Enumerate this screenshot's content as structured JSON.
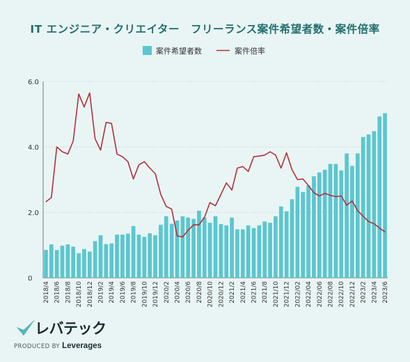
{
  "header": {
    "title": "IT エンジニア・クリエイター　フリーランス案件希望者数・案件倍率"
  },
  "brand": {
    "logo_text": "レバテック",
    "produced_by": "PRODUCED BY",
    "company": "Leverages"
  },
  "colors": {
    "background": "#e9f5f4",
    "bar": "#5bc6cf",
    "line": "#b0313a",
    "title": "#226f6e"
  },
  "chart_data": {
    "type": "bar",
    "title": "IT エンジニア・クリエイター　フリーランス案件希望者数・案件倍率",
    "legend_position": "top",
    "grid": "horizontal",
    "ylim": [
      0,
      6
    ],
    "yticks": [
      "0",
      "2.0",
      "4.0",
      "6.0"
    ],
    "x": [
      "2018/4",
      "2018/5",
      "2018/6",
      "2018/7",
      "2018/8",
      "2018/9",
      "2018/10",
      "2018/11",
      "2018/12",
      "2019/1",
      "2019/2",
      "2019/3",
      "2019/4",
      "2019/5",
      "2019/6",
      "2019/7",
      "2019/8",
      "2019/9",
      "2019/10",
      "2019/11",
      "2019/12",
      "2020/1",
      "2020/2",
      "2020/3",
      "2020/4",
      "2020/5",
      "2020/6",
      "2020/7",
      "2020/8",
      "2020/9",
      "2020/10",
      "2020/11",
      "2020/12",
      "2021/1",
      "2021/2",
      "2021/3",
      "2021/4",
      "2021/5",
      "2021/6",
      "2021/7",
      "2021/8",
      "2021/9",
      "2021/10",
      "2021/11",
      "2021/12",
      "2022/1",
      "2022/2",
      "2022/3",
      "2022/4",
      "2022/5",
      "2022/6",
      "2022/7",
      "2022/8",
      "2022/9",
      "2022/10",
      "2022/11",
      "2022/12",
      "2023/1",
      "2023/2",
      "2023/3",
      "2023/4",
      "2023/5",
      "2023/6"
    ],
    "xtick_labels": [
      "2018/4",
      "2018/6",
      "2018/8",
      "2018/10",
      "2018/12",
      "2019/2",
      "2019/4",
      "2019/6",
      "2019/8",
      "2019/10",
      "2019/12",
      "2020/2",
      "2020/4",
      "2020/6",
      "2020/8",
      "2020/10",
      "2020/12",
      "2021/2",
      "2021/4",
      "2021/6",
      "2021/8",
      "2021/10",
      "2021/12",
      "2022/02",
      "2022/04",
      "2022/06",
      "2022/08",
      "2022/10",
      "2022/12",
      "2023/2",
      "2023/4",
      "2023/6"
    ],
    "series": [
      {
        "name": "案件希望者数",
        "type": "bar",
        "values": [
          0.85,
          1.02,
          0.85,
          0.98,
          1.02,
          0.95,
          0.75,
          0.88,
          0.8,
          1.12,
          1.3,
          1.03,
          1.05,
          1.32,
          1.32,
          1.35,
          1.58,
          1.32,
          1.25,
          1.36,
          1.3,
          1.62,
          1.88,
          1.65,
          1.75,
          1.88,
          1.84,
          1.8,
          2.05,
          1.84,
          1.68,
          1.88,
          1.64,
          1.6,
          1.84,
          1.48,
          1.48,
          1.6,
          1.52,
          1.6,
          1.72,
          1.68,
          1.88,
          2.18,
          2.03,
          2.4,
          2.78,
          2.62,
          2.82,
          3.1,
          3.22,
          3.3,
          3.48,
          3.48,
          3.28,
          3.8,
          3.42,
          3.8,
          4.3,
          4.38,
          4.48,
          4.93,
          5.03
        ]
      },
      {
        "name": "案件倍率",
        "type": "line",
        "values": [
          2.32,
          2.45,
          4.0,
          3.85,
          3.78,
          4.18,
          5.62,
          5.22,
          5.65,
          4.25,
          3.9,
          4.75,
          4.72,
          3.78,
          3.7,
          3.55,
          3.02,
          3.45,
          3.55,
          3.35,
          3.18,
          2.55,
          2.18,
          2.1,
          1.28,
          1.25,
          1.45,
          1.62,
          1.62,
          1.85,
          2.3,
          2.2,
          2.55,
          2.9,
          2.68,
          3.35,
          3.4,
          3.25,
          3.7,
          3.72,
          3.75,
          3.85,
          3.75,
          3.35,
          3.82,
          3.3,
          3.0,
          3.02,
          2.82,
          2.6,
          2.5,
          2.58,
          2.52,
          2.48,
          2.5,
          2.22,
          2.35,
          2.05,
          1.88,
          1.72,
          1.65,
          1.52,
          1.4
        ]
      }
    ]
  }
}
